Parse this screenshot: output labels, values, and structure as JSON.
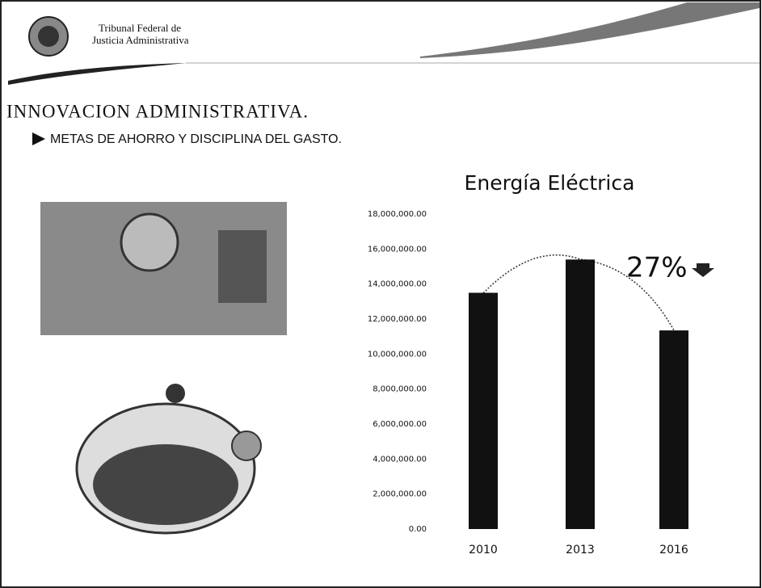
{
  "header": {
    "org_line1": "Tribunal Federal de",
    "org_line2": "Justicia Administrativa"
  },
  "slide": {
    "title": "INNOVACION ADMINISTRATIVA.",
    "subtitle": "METAS DE AHORRO Y DISCIPLINA DEL GASTO."
  },
  "chart_data": {
    "type": "bar",
    "title": "Energía Eléctrica",
    "categories": [
      "2010",
      "2013",
      "2016"
    ],
    "values": [
      13500000,
      15400000,
      11350000
    ],
    "color": "#111111",
    "annotation": "27%",
    "ylim": [
      0,
      18000000
    ],
    "yticks": [
      {
        "value": 0,
        "label": "0.00"
      },
      {
        "value": 2000000,
        "label": "2,000,000.00"
      },
      {
        "value": 4000000,
        "label": "4,000,000.00"
      },
      {
        "value": 6000000,
        "label": "6,000,000.00"
      },
      {
        "value": 8000000,
        "label": "8,000,000.00"
      },
      {
        "value": 10000000,
        "label": "10,000,000.00"
      },
      {
        "value": 12000000,
        "label": "12,000,000.00"
      },
      {
        "value": 14000000,
        "label": "14,000,000.00"
      },
      {
        "value": 16000000,
        "label": "16,000,000.00"
      },
      {
        "value": 18000000,
        "label": "18,000,000.00"
      }
    ],
    "grid": false
  }
}
